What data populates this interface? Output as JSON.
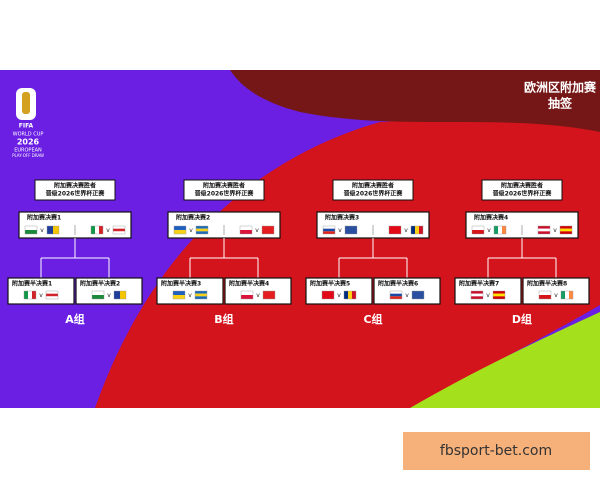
{
  "header": {
    "title": "欧洲区附加赛",
    "subtitle": "抽签"
  },
  "logo": {
    "brand": "FIFA",
    "line1": "WORLD CUP",
    "year": "2026",
    "line2": "EUROPEAN",
    "line3": "PLAY-OFF DRAW"
  },
  "versus": "v",
  "groups": [
    {
      "winner": [
        "附加赛决赛胜者",
        "晋级2026世界杯正赛"
      ],
      "final": "附加赛决赛1",
      "semis": [
        "附加赛半决赛1",
        "附加赛半决赛2"
      ],
      "label": "A组"
    },
    {
      "winner": [
        "附加赛决赛胜者",
        "晋级2026世界杯正赛"
      ],
      "final": "附加赛决赛2",
      "semis": [
        "附加赛半决赛3",
        "附加赛半决赛4"
      ],
      "label": "B组"
    },
    {
      "winner": [
        "附加赛决赛胜者",
        "晋级2026世界杯正赛"
      ],
      "final": "附加赛决赛3",
      "semis": [
        "附加赛半决赛5",
        "附加赛半决赛6"
      ],
      "label": "C组"
    },
    {
      "winner": [
        "附加赛决赛胜者",
        "晋级2026世界杯正赛"
      ],
      "final": "附加赛决赛4",
      "semis": [
        "附加赛半决赛7",
        "附加赛半决赛8"
      ],
      "label": "D组"
    }
  ],
  "footer": {
    "watermark": "fbsport-bet.com"
  }
}
